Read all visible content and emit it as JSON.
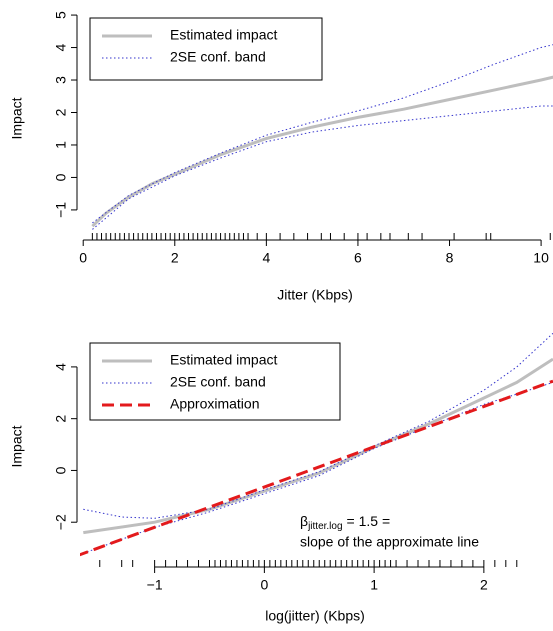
{
  "chart_data": [
    {
      "type": "line",
      "xlabel": "Jitter (Kbps)",
      "ylabel": "Impact",
      "legend": "top-left",
      "xlim": [
        -0.07,
        10.26
      ],
      "ylim": [
        -1.68,
        5.31
      ],
      "xticks": [
        0,
        2,
        4,
        6,
        8,
        10
      ],
      "yticks": [
        {
          "value": -1,
          "label": "−1"
        },
        0,
        1,
        2,
        3,
        4,
        5
      ],
      "series": [
        {
          "name": "Estimated impact",
          "color": "#bebebe",
          "style": "solid",
          "width": 3,
          "x": [
            0.2,
            0.5,
            1,
            1.5,
            2,
            2.5,
            3,
            3.5,
            4,
            5,
            6,
            7,
            8,
            9,
            10,
            10.3
          ],
          "values": [
            -1.5,
            -1.1,
            -0.6,
            -0.2,
            0.1,
            0.4,
            0.7,
            0.95,
            1.2,
            1.55,
            1.85,
            2.1,
            2.4,
            2.7,
            3.0,
            3.1
          ]
        },
        {
          "name": "2SE conf. band",
          "color": "#3333cc",
          "style": "dotted",
          "width": 1,
          "x": [
            0.2,
            1,
            2,
            3,
            4,
            5,
            6,
            7,
            8,
            9,
            10,
            10.3
          ],
          "values": [
            -1.4,
            -0.55,
            0.15,
            0.75,
            1.3,
            1.7,
            2.05,
            2.45,
            2.95,
            3.5,
            4.0,
            4.1
          ]
        },
        {
          "color": "#3333cc",
          "style": "dotted",
          "width": 1,
          "x": [
            0.2,
            1,
            2,
            3,
            4,
            5,
            6,
            7,
            8,
            9,
            10,
            10.3
          ],
          "values": [
            -1.6,
            -0.65,
            0.05,
            0.6,
            1.1,
            1.4,
            1.6,
            1.75,
            1.9,
            2.05,
            2.2,
            2.2
          ]
        }
      ],
      "rug": [
        0.2,
        0.3,
        0.4,
        0.5,
        0.6,
        0.7,
        0.8,
        0.9,
        1.0,
        1.1,
        1.2,
        1.3,
        1.4,
        1.5,
        1.6,
        1.7,
        1.8,
        1.9,
        2.0,
        2.1,
        2.2,
        2.3,
        2.4,
        2.5,
        2.6,
        2.7,
        2.8,
        2.9,
        3.0,
        3.1,
        3.2,
        3.3,
        3.4,
        3.5,
        3.6,
        3.8,
        4.0,
        4.3,
        4.6,
        4.9,
        5.2,
        5.4,
        5.7,
        6.0,
        6.2,
        6.5,
        6.7,
        7.1,
        7.4,
        8.1,
        8.8,
        8.9,
        10.2
      ]
    },
    {
      "type": "line",
      "xlabel": "log(jitter) (Kbps)",
      "ylabel": "Impact",
      "legend": "top-left",
      "xlim": [
        -1.68,
        2.63
      ],
      "ylim": [
        -3.46,
        5.31
      ],
      "xticks": [
        {
          "value": -1,
          "label": "−1"
        },
        0,
        1,
        2
      ],
      "yticks": [
        {
          "value": -2,
          "label": "−2"
        },
        0,
        2,
        4
      ],
      "series": [
        {
          "name": "Estimated impact",
          "color": "#bebebe",
          "style": "solid",
          "width": 3,
          "x": [
            -1.65,
            -1,
            -0.5,
            0,
            0.5,
            1,
            1.5,
            2,
            2.3,
            2.63
          ],
          "values": [
            -2.4,
            -2.0,
            -1.5,
            -0.8,
            -0.1,
            0.9,
            1.8,
            2.8,
            3.4,
            4.3
          ]
        },
        {
          "name": "2SE conf. band",
          "color": "#3333cc",
          "style": "dotted",
          "width": 1,
          "x": [
            -1.65,
            -1.3,
            -1,
            -0.5,
            0,
            0.5,
            1,
            1.5,
            2,
            2.3,
            2.63
          ],
          "values": [
            -1.5,
            -1.8,
            -1.85,
            -1.5,
            -0.75,
            -0.05,
            0.95,
            1.9,
            3.1,
            4.0,
            5.3
          ]
        },
        {
          "color": "#3333cc",
          "style": "dotted",
          "width": 1,
          "x": [
            -1.65,
            -1,
            -0.5,
            0,
            0.5,
            1,
            1.5,
            2,
            2.3,
            2.63
          ],
          "values": [
            -3.2,
            -2.2,
            -1.6,
            -0.9,
            -0.2,
            0.85,
            1.7,
            2.55,
            2.95,
            3.4
          ]
        },
        {
          "name": "Approximation",
          "color": "#e31a1c",
          "style": "dashed",
          "width": 3,
          "x": [
            -1.71,
            2.63
          ],
          "values": [
            -3.3,
            3.45
          ]
        }
      ],
      "rug": [
        -1.5,
        -1.3,
        -1.2,
        -1.0,
        -0.9,
        -0.8,
        -0.7,
        -0.6,
        -0.5,
        -0.45,
        -0.4,
        -0.35,
        -0.3,
        -0.25,
        -0.2,
        -0.15,
        -0.1,
        -0.05,
        0,
        0.05,
        0.1,
        0.15,
        0.2,
        0.25,
        0.3,
        0.35,
        0.4,
        0.45,
        0.5,
        0.55,
        0.6,
        0.65,
        0.7,
        0.75,
        0.8,
        0.85,
        0.9,
        0.95,
        1.0,
        1.05,
        1.1,
        1.15,
        1.2,
        1.3,
        1.4,
        1.5,
        1.6,
        1.7,
        1.8,
        1.9,
        2.0,
        2.1,
        2.2,
        2.3
      ],
      "annotation": {
        "symbol": "β",
        "subscript": "jitter.log",
        "text": "= 1.5 =",
        "line2": "slope of the approximate line"
      }
    }
  ]
}
